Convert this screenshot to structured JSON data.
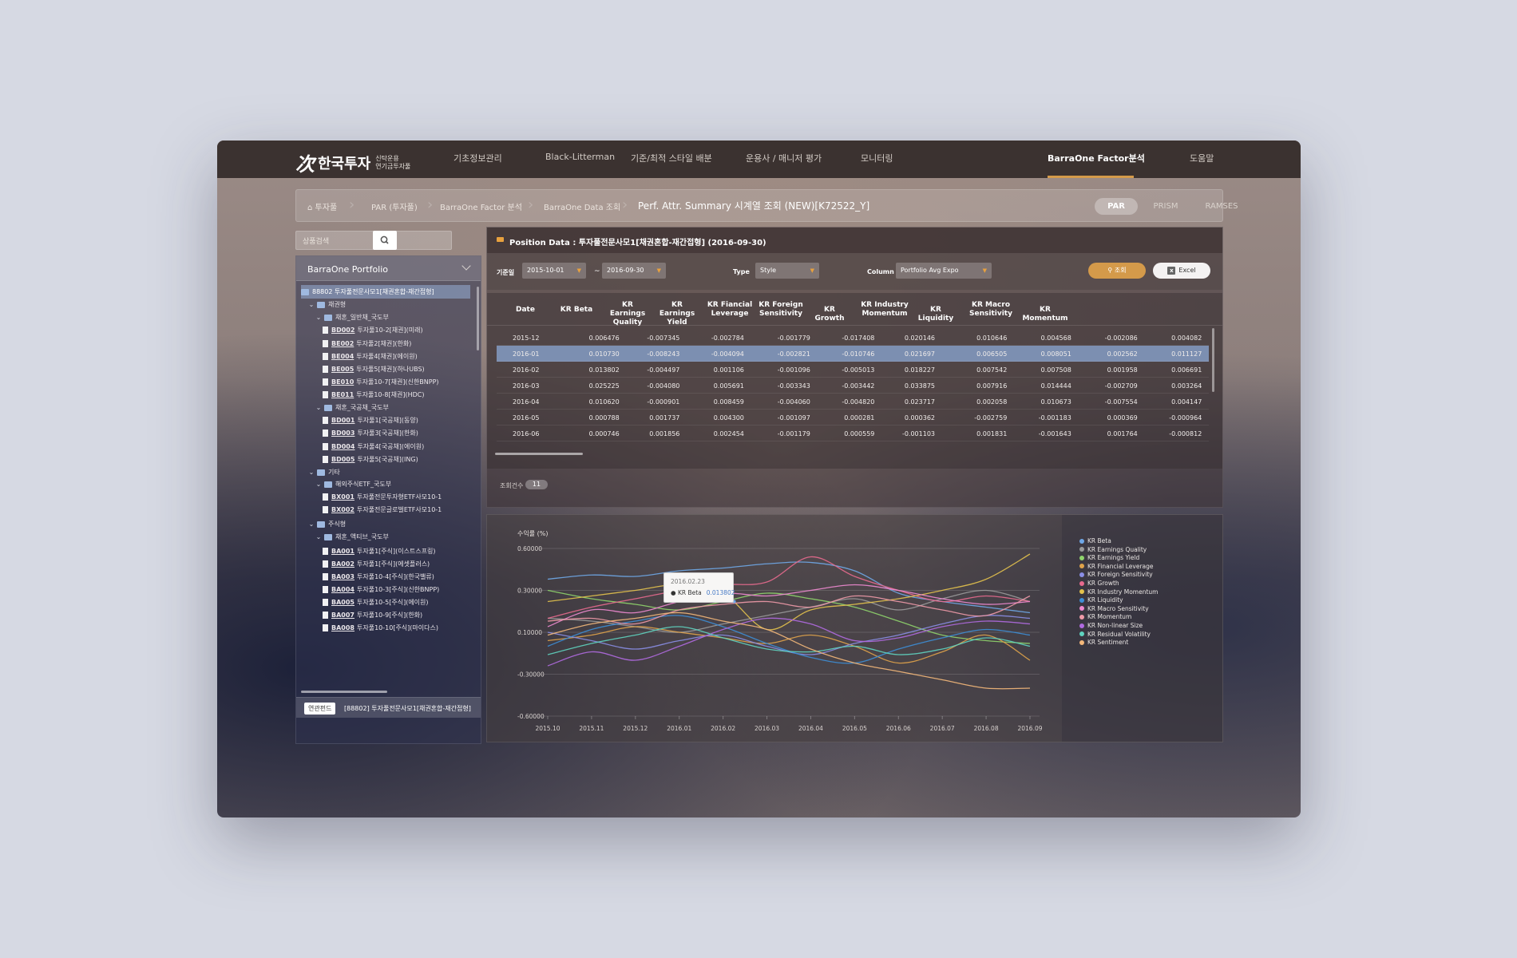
{
  "brand": {
    "logo_mark": "次",
    "name": "한국투자",
    "sub1": "신탁운용",
    "sub2": "연기금투자풀"
  },
  "nav": [
    {
      "label": "기초정보관리"
    },
    {
      "label": "Black-Litterman"
    },
    {
      "label": "기준/최적 스타일 배분"
    },
    {
      "label": "운용사 / 매니저 평가"
    },
    {
      "label": "모니터링"
    },
    {
      "label": "BarraOne Factor분석",
      "active": true
    },
    {
      "label": "도움말"
    }
  ],
  "breadcrumb": {
    "items": [
      "투자풀",
      "PAR (투자풀)",
      "BarraOne Factor 분석",
      "BarraOne Data 조회"
    ],
    "title": "Perf. Attr. Summary 시계열 조회 (NEW)[K72522_Y]"
  },
  "view_tabs": [
    {
      "label": "PAR",
      "active": true
    },
    {
      "label": "PRISM"
    },
    {
      "label": "RAMSES"
    }
  ],
  "search": {
    "placeholder": "상품검색"
  },
  "portfolio_panel": {
    "title": "BarraOne Portfolio",
    "footer_badge": "연관펀드",
    "footer_text": "[88802] 투자풀전문사모1[채권혼합-재간접형]"
  },
  "tree": [
    {
      "indent": 0,
      "type": "folder",
      "text": "88802 투자풀전문사모1[채권혼합-재간접형]",
      "selected": true,
      "twisty": ""
    },
    {
      "indent": 1,
      "type": "folder",
      "text": "채권형",
      "twisty": "⌄"
    },
    {
      "indent": 2,
      "type": "folder",
      "text": "채혼_일반채_국도부",
      "twisty": "⌄"
    },
    {
      "indent": 3,
      "type": "doc",
      "code": "BD002",
      "text": "투자풀10-2[채권](미래)"
    },
    {
      "indent": 3,
      "type": "doc",
      "code": "BE002",
      "text": "투자풀2[채권](한화)"
    },
    {
      "indent": 3,
      "type": "doc",
      "code": "BE004",
      "text": "투자풀4[채권](에이원)"
    },
    {
      "indent": 3,
      "type": "doc",
      "code": "BE005",
      "text": "투자풀5[채권](하나UBS)"
    },
    {
      "indent": 3,
      "type": "doc",
      "code": "BE010",
      "text": "투자풀10-7[채권](신한BNPP)"
    },
    {
      "indent": 3,
      "type": "doc",
      "code": "BE011",
      "text": "투자풀10-8[채권](HDC)"
    },
    {
      "indent": 2,
      "type": "folder",
      "text": "채혼_국공채_국도부",
      "twisty": "⌄"
    },
    {
      "indent": 3,
      "type": "doc",
      "code": "BD001",
      "text": "투자풀1[국공채](동양)"
    },
    {
      "indent": 3,
      "type": "doc",
      "code": "BD003",
      "text": "투자풀3[국공채](한화)"
    },
    {
      "indent": 3,
      "type": "doc",
      "code": "BD004",
      "text": "투자풀4[국공채](에이원)"
    },
    {
      "indent": 3,
      "type": "doc",
      "code": "BD005",
      "text": "투자풀5[국공채](ING)"
    },
    {
      "indent": 1,
      "type": "folder",
      "text": "기타",
      "twisty": "⌄"
    },
    {
      "indent": 2,
      "type": "folder",
      "text": "해외주식ETF_국도부",
      "twisty": "⌄"
    },
    {
      "indent": 3,
      "type": "doc",
      "code": "BX001",
      "text": "투자풀전문투자형ETF사모10-1"
    },
    {
      "indent": 3,
      "type": "doc",
      "code": "BX002",
      "text": "투자풀전문글로벌ETF사모10-1"
    },
    {
      "indent": 1,
      "type": "folder",
      "text": "주식형",
      "twisty": "⌄"
    },
    {
      "indent": 2,
      "type": "folder",
      "text": "채혼_액티브_국도부",
      "twisty": "⌄"
    },
    {
      "indent": 3,
      "type": "doc",
      "code": "BA001",
      "text": "투자풀1[주식](이스트스프링)"
    },
    {
      "indent": 3,
      "type": "doc",
      "code": "BA002",
      "text": "투자풀1[주식](에셋플러스)"
    },
    {
      "indent": 3,
      "type": "doc",
      "code": "BA003",
      "text": "투자풀10-4[주식](한국밸류)"
    },
    {
      "indent": 3,
      "type": "doc",
      "code": "BA004",
      "text": "투자풀10-3[주식](신한BNPP)"
    },
    {
      "indent": 3,
      "type": "doc",
      "code": "BA005",
      "text": "투자풀10-5[주식](에이원)"
    },
    {
      "indent": 3,
      "type": "doc",
      "code": "BA007",
      "text": "투자풀10-9[주식](한화)"
    },
    {
      "indent": 3,
      "type": "doc",
      "code": "BA008",
      "text": "투자풀10-10[주식](마이다스)"
    }
  ],
  "position": {
    "title": "Position Data : 투자풀전문사모1[채권혼합-재간접형] (2016-09-30)",
    "filters": {
      "base_label": "기준일",
      "date_from": "2015-10-01",
      "date_to": "2016-09-30",
      "tilde": "~",
      "type_label": "Type",
      "type_value": "Style",
      "column_label": "Column",
      "column_value": "Portfolio Avg Expo"
    },
    "search_btn": "조회",
    "excel_btn": "Excel",
    "columns": [
      "Date",
      "KR Beta",
      "KR Earnings Quality",
      "KR Earnings Yield",
      "KR Fiancial Leverage",
      "KR Foreign Sensitivity",
      "KR Growth",
      "KR Industry Momentum",
      "KR Liquidity",
      "KR Macro Sensitivity",
      "KR Momentum"
    ],
    "rows": [
      [
        "2015-12",
        "0.006476",
        "-0.007345",
        "-0.002784",
        "-0.001779",
        "-0.017408",
        "0.020146",
        "0.010646",
        "0.004568",
        "-0.002086",
        "0.004082"
      ],
      [
        "2016-01",
        "0.010730",
        "-0.008243",
        "-0.004094",
        "-0.002821",
        "-0.010746",
        "0.021697",
        "0.006505",
        "0.008051",
        "0.002562",
        "0.011127"
      ],
      [
        "2016-02",
        "0.013802",
        "-0.004497",
        "0.001106",
        "-0.001096",
        "-0.005013",
        "0.018227",
        "0.007542",
        "0.007508",
        "0.001958",
        "0.006691"
      ],
      [
        "2016-03",
        "0.025225",
        "-0.004080",
        "0.005691",
        "-0.003343",
        "-0.003442",
        "0.033875",
        "0.007916",
        "0.014444",
        "-0.002709",
        "0.003264"
      ],
      [
        "2016-04",
        "0.010620",
        "-0.000901",
        "0.008459",
        "-0.004060",
        "-0.004820",
        "0.023717",
        "0.002058",
        "0.010673",
        "-0.007554",
        "0.004147"
      ],
      [
        "2016-05",
        "0.000788",
        "0.001737",
        "0.004300",
        "-0.001097",
        "0.000281",
        "0.000362",
        "-0.002759",
        "-0.001183",
        "0.000369",
        "-0.000964"
      ],
      [
        "2016-06",
        "0.000746",
        "0.001856",
        "0.002454",
        "-0.001179",
        "0.000559",
        "-0.001103",
        "0.001831",
        "-0.001643",
        "0.001764",
        "-0.000812"
      ]
    ],
    "selected_row": 1,
    "count_label": "조회건수",
    "count_value": "11"
  },
  "chart_data": {
    "type": "line",
    "ylabel": "수익률 (%)",
    "ylim": [
      -0.6,
      0.6
    ],
    "yticks": [
      "0.60000",
      "0.30000",
      "0.10000",
      "-0.30000",
      "-0.60000"
    ],
    "categories": [
      "2015.10",
      "2015.11",
      "2015.12",
      "2016.01",
      "2016.02",
      "2016.03",
      "2016.04",
      "2016.05",
      "2016.06",
      "2016.07",
      "2016.08",
      "2016.09"
    ],
    "grid": true,
    "legend_position": "right",
    "series": [
      {
        "name": "KR Beta",
        "color": "#6fa8e8",
        "values": [
          0.38,
          0.41,
          0.4,
          0.44,
          0.46,
          0.49,
          0.5,
          0.44,
          0.28,
          0.22,
          0.18,
          0.14
        ]
      },
      {
        "name": "KR Earnings Quality",
        "color": "#9a9a9a",
        "values": [
          0.1,
          0.08,
          0.04,
          0.0,
          0.06,
          0.12,
          0.18,
          0.24,
          0.16,
          0.24,
          0.3,
          0.22
        ]
      },
      {
        "name": "KR Earnings Yield",
        "color": "#8fd46c",
        "values": [
          0.3,
          0.24,
          0.2,
          0.16,
          0.22,
          0.28,
          0.24,
          0.18,
          0.08,
          -0.02,
          -0.06,
          -0.08
        ]
      },
      {
        "name": "KR Financial Leverage",
        "color": "#e0a34a",
        "values": [
          -0.06,
          -0.02,
          0.04,
          0.0,
          -0.04,
          -0.08,
          -0.02,
          -0.1,
          -0.22,
          -0.14,
          -0.02,
          -0.2
        ]
      },
      {
        "name": "KR Foreign Sensitivity",
        "color": "#8a8ee6",
        "values": [
          0.0,
          -0.06,
          -0.12,
          -0.06,
          -0.02,
          -0.1,
          -0.16,
          -0.08,
          -0.02,
          0.06,
          0.12,
          0.1
        ]
      },
      {
        "name": "KR Growth",
        "color": "#e86a8e",
        "values": [
          0.1,
          0.18,
          0.24,
          0.3,
          0.34,
          0.36,
          0.54,
          0.4,
          0.3,
          0.22,
          0.26,
          0.22
        ]
      },
      {
        "name": "KR Industry Momentum",
        "color": "#e3c24c",
        "values": [
          0.22,
          0.26,
          0.3,
          0.34,
          0.28,
          0.02,
          0.16,
          0.2,
          0.24,
          0.3,
          0.38,
          0.56
        ]
      },
      {
        "name": "KR Liquidity",
        "color": "#3d8ed6",
        "values": [
          -0.1,
          0.02,
          0.08,
          0.12,
          0.04,
          -0.08,
          -0.18,
          -0.22,
          -0.12,
          -0.04,
          0.02,
          -0.02
        ]
      },
      {
        "name": "KR Macro Sensitivity",
        "color": "#ee8ad0",
        "values": [
          0.04,
          0.16,
          0.14,
          0.22,
          0.28,
          0.26,
          0.3,
          0.34,
          0.3,
          0.24,
          0.2,
          0.22
        ]
      },
      {
        "name": "KR Momentum",
        "color": "#f09aa8",
        "values": [
          0.08,
          0.1,
          0.06,
          0.16,
          0.2,
          0.22,
          0.18,
          0.26,
          0.22,
          0.16,
          0.12,
          0.26
        ]
      },
      {
        "name": "KR Non-linear Size",
        "color": "#b06ae0",
        "values": [
          -0.24,
          -0.14,
          -0.2,
          -0.1,
          0.02,
          0.1,
          0.06,
          -0.06,
          -0.04,
          0.04,
          0.08,
          0.06
        ]
      },
      {
        "name": "KR Residual Volatility",
        "color": "#5fd4c0",
        "values": [
          -0.16,
          -0.08,
          -0.02,
          0.04,
          -0.04,
          -0.12,
          -0.14,
          -0.1,
          -0.16,
          -0.12,
          -0.04,
          -0.1
        ]
      },
      {
        "name": "KR Sentiment",
        "color": "#f4b87a",
        "values": [
          -0.02,
          0.06,
          0.1,
          0.14,
          0.08,
          0.02,
          -0.12,
          -0.22,
          -0.28,
          -0.34,
          -0.4,
          -0.4
        ]
      }
    ],
    "tooltip": {
      "date": "2016.02.23",
      "series": "KR Beta",
      "value": "0.013802"
    }
  }
}
